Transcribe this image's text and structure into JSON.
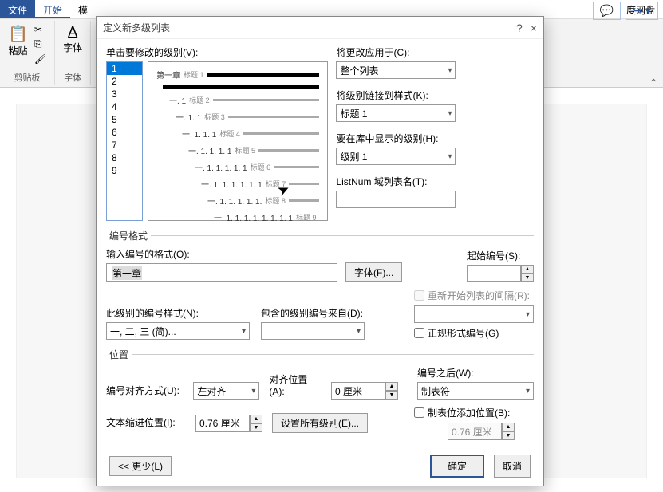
{
  "ribbon": {
    "tabs": {
      "file": "文件",
      "home": "开始",
      "other": "模",
      "baidu": "度网盘"
    }
  },
  "ribbon_groups": {
    "clipboard": "剪贴板",
    "paste": "粘贴",
    "font": "字体"
  },
  "dialog": {
    "title": "定义新多级列表",
    "level_label": "单击要修改的级别(V):",
    "levels": [
      "1",
      "2",
      "3",
      "4",
      "5",
      "6",
      "7",
      "8",
      "9"
    ],
    "preview": [
      {
        "num": "第一章",
        "lbl": "标题 1",
        "bold": true,
        "indent": 0
      },
      {
        "num": "",
        "lbl": "",
        "bold": true,
        "indent": 8
      },
      {
        "num": "一. 1",
        "lbl": "标题 2",
        "bold": false,
        "indent": 16
      },
      {
        "num": "一. 1. 1",
        "lbl": "标题 3",
        "bold": false,
        "indent": 24
      },
      {
        "num": "一. 1. 1. 1",
        "lbl": "标题 4",
        "bold": false,
        "indent": 32
      },
      {
        "num": "一. 1. 1. 1. 1",
        "lbl": "标题 5",
        "bold": false,
        "indent": 40
      },
      {
        "num": "一. 1. 1. 1. 1. 1",
        "lbl": "标题 6",
        "bold": false,
        "indent": 48
      },
      {
        "num": "一. 1. 1. 1. 1. 1. 1",
        "lbl": "标题 7",
        "bold": false,
        "indent": 56
      },
      {
        "num": "一. 1. 1. 1. 1. 1.",
        "lbl": "标题 8",
        "bold": false,
        "indent": 64
      },
      {
        "num": "一. 1. 1. 1. 1. 1. 1. 1. 1",
        "lbl": "标题 9",
        "bold": false,
        "indent": 72
      }
    ],
    "apply_to_label": "将更改应用于(C):",
    "apply_to_value": "整个列表",
    "link_style_label": "将级别链接到样式(K):",
    "link_style_value": "标题 1",
    "gallery_label": "要在库中显示的级别(H):",
    "gallery_value": "级别 1",
    "listnum_label": "ListNum 域列表名(T):",
    "listnum_value": "",
    "fmt_legend": "编号格式",
    "enter_fmt_label": "输入编号的格式(O):",
    "enter_fmt_value": "第一章",
    "font_btn": "字体(F)...",
    "start_at_label": "起始编号(S):",
    "start_at_value": "一",
    "restart_label": "重新开始列表的间隔(R):",
    "numstyle_label": "此级别的编号样式(N):",
    "numstyle_value": "一, 二, 三 (简)...",
    "include_label": "包含的级别编号来自(D):",
    "legal_label": "正规形式编号(G)",
    "pos_legend": "位置",
    "align_label": "编号对齐方式(U):",
    "align_value": "左对齐",
    "align_at_label": "对齐位置(A):",
    "align_at_value": "0 厘米",
    "indent_label": "文本缩进位置(I):",
    "indent_value": "0.76 厘米",
    "set_all_btn": "设置所有级别(E)...",
    "follow_label": "编号之后(W):",
    "follow_value": "制表符",
    "tabstop_label": "制表位添加位置(B):",
    "tabstop_value": "0.76 厘米",
    "less_btn": "<< 更少(L)",
    "ok_btn": "确定",
    "cancel_btn": "取消"
  }
}
